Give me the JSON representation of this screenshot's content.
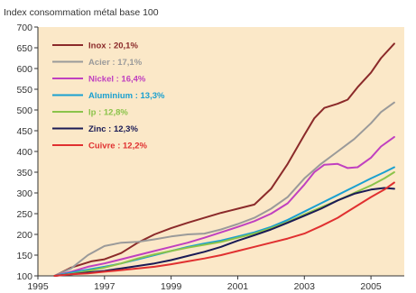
{
  "chart_data": {
    "type": "line",
    "title": "Index consommation métal base 100",
    "xlim": [
      1995,
      2006
    ],
    "ylim": [
      100,
      700
    ],
    "x_ticks": [
      1995,
      1997,
      1999,
      2001,
      2003,
      2005
    ],
    "y_ticks": [
      100,
      150,
      200,
      250,
      300,
      350,
      400,
      450,
      500,
      550,
      600,
      650,
      700
    ],
    "plot_background": "#fbe8c8",
    "grid": false,
    "legend_position": "top-left",
    "series": [
      {
        "name": "Inox : 20,1%",
        "color": "#8b2a2a",
        "points": [
          [
            1995.5,
            100
          ],
          [
            1996,
            120
          ],
          [
            1996.6,
            135
          ],
          [
            1997,
            140
          ],
          [
            1997.5,
            155
          ],
          [
            1998,
            180
          ],
          [
            1998.5,
            200
          ],
          [
            1999,
            215
          ],
          [
            1999.5,
            228
          ],
          [
            2000,
            240
          ],
          [
            2000.5,
            252
          ],
          [
            2001,
            262
          ],
          [
            2001.5,
            272
          ],
          [
            2002,
            310
          ],
          [
            2002.5,
            370
          ],
          [
            2003,
            440
          ],
          [
            2003.3,
            480
          ],
          [
            2003.6,
            505
          ],
          [
            2004,
            515
          ],
          [
            2004.3,
            525
          ],
          [
            2004.6,
            555
          ],
          [
            2005,
            590
          ],
          [
            2005.3,
            625
          ],
          [
            2005.7,
            660
          ]
        ]
      },
      {
        "name": "Acier : 17,1%",
        "color": "#9a9a9a",
        "points": [
          [
            1995.5,
            100
          ],
          [
            1996,
            118
          ],
          [
            1996.5,
            150
          ],
          [
            1997,
            172
          ],
          [
            1997.5,
            180
          ],
          [
            1998,
            182
          ],
          [
            1998.5,
            188
          ],
          [
            1999,
            195
          ],
          [
            1999.5,
            200
          ],
          [
            2000,
            202
          ],
          [
            2000.5,
            212
          ],
          [
            2001,
            225
          ],
          [
            2001.5,
            240
          ],
          [
            2002,
            262
          ],
          [
            2002.5,
            290
          ],
          [
            2003,
            335
          ],
          [
            2003.5,
            370
          ],
          [
            2004,
            400
          ],
          [
            2004.5,
            430
          ],
          [
            2005,
            468
          ],
          [
            2005.3,
            495
          ],
          [
            2005.7,
            518
          ]
        ]
      },
      {
        "name": "Nickel : 16,4%",
        "color": "#c040c0",
        "points": [
          [
            1995.5,
            100
          ],
          [
            1996,
            110
          ],
          [
            1996.5,
            122
          ],
          [
            1997,
            130
          ],
          [
            1997.5,
            140
          ],
          [
            1998,
            150
          ],
          [
            1998.5,
            160
          ],
          [
            1999,
            170
          ],
          [
            1999.5,
            180
          ],
          [
            2000,
            192
          ],
          [
            2000.5,
            205
          ],
          [
            2001,
            218
          ],
          [
            2001.5,
            232
          ],
          [
            2002,
            250
          ],
          [
            2002.5,
            275
          ],
          [
            2003,
            320
          ],
          [
            2003.3,
            350
          ],
          [
            2003.6,
            368
          ],
          [
            2004,
            370
          ],
          [
            2004.3,
            360
          ],
          [
            2004.6,
            362
          ],
          [
            2005,
            385
          ],
          [
            2005.3,
            412
          ],
          [
            2005.7,
            435
          ]
        ]
      },
      {
        "name": "Aluminium : 13,3%",
        "color": "#1aa0d0",
        "points": [
          [
            1995.5,
            100
          ],
          [
            1996,
            108
          ],
          [
            1996.5,
            115
          ],
          [
            1997,
            122
          ],
          [
            1997.5,
            130
          ],
          [
            1998,
            140
          ],
          [
            1998.5,
            150
          ],
          [
            1999,
            160
          ],
          [
            1999.5,
            170
          ],
          [
            2000,
            178
          ],
          [
            2000.5,
            185
          ],
          [
            2001,
            195
          ],
          [
            2001.5,
            205
          ],
          [
            2002,
            218
          ],
          [
            2002.5,
            235
          ],
          [
            2003,
            255
          ],
          [
            2003.5,
            275
          ],
          [
            2004,
            295
          ],
          [
            2004.5,
            315
          ],
          [
            2005,
            335
          ],
          [
            2005.4,
            350
          ],
          [
            2005.7,
            362
          ]
        ]
      },
      {
        "name": "Ip : 12,8%",
        "color": "#8bc34a",
        "points": [
          [
            1995.5,
            100
          ],
          [
            1996,
            105
          ],
          [
            1996.5,
            112
          ],
          [
            1997,
            120
          ],
          [
            1997.5,
            130
          ],
          [
            1998,
            142
          ],
          [
            1998.5,
            152
          ],
          [
            1999,
            160
          ],
          [
            1999.5,
            168
          ],
          [
            2000,
            175
          ],
          [
            2000.5,
            182
          ],
          [
            2001,
            192
          ],
          [
            2001.5,
            202
          ],
          [
            2002,
            215
          ],
          [
            2002.5,
            230
          ],
          [
            2003,
            248
          ],
          [
            2003.5,
            265
          ],
          [
            2004,
            282
          ],
          [
            2004.5,
            300
          ],
          [
            2005,
            318
          ],
          [
            2005.4,
            335
          ],
          [
            2005.7,
            350
          ]
        ]
      },
      {
        "name": "Zinc : 12,3%",
        "color": "#1a1a55",
        "points": [
          [
            1995.5,
            100
          ],
          [
            1996,
            104
          ],
          [
            1996.5,
            108
          ],
          [
            1997,
            112
          ],
          [
            1997.5,
            118
          ],
          [
            1998,
            124
          ],
          [
            1998.5,
            130
          ],
          [
            1999,
            138
          ],
          [
            1999.5,
            148
          ],
          [
            2000,
            158
          ],
          [
            2000.5,
            170
          ],
          [
            2001,
            185
          ],
          [
            2001.5,
            198
          ],
          [
            2002,
            212
          ],
          [
            2002.5,
            228
          ],
          [
            2003,
            245
          ],
          [
            2003.5,
            262
          ],
          [
            2004,
            282
          ],
          [
            2004.5,
            298
          ],
          [
            2005,
            308
          ],
          [
            2005.4,
            312
          ],
          [
            2005.7,
            310
          ]
        ]
      },
      {
        "name": "Cuivre : 12,2%",
        "color": "#e03030",
        "points": [
          [
            1995.5,
            100
          ],
          [
            1996,
            104
          ],
          [
            1996.5,
            106
          ],
          [
            1997,
            110
          ],
          [
            1997.5,
            114
          ],
          [
            1998,
            118
          ],
          [
            1998.5,
            122
          ],
          [
            1999,
            128
          ],
          [
            1999.5,
            135
          ],
          [
            2000,
            142
          ],
          [
            2000.5,
            150
          ],
          [
            2001,
            160
          ],
          [
            2001.5,
            170
          ],
          [
            2002,
            180
          ],
          [
            2002.5,
            190
          ],
          [
            2003,
            202
          ],
          [
            2003.5,
            220
          ],
          [
            2004,
            240
          ],
          [
            2004.5,
            265
          ],
          [
            2005,
            290
          ],
          [
            2005.4,
            308
          ],
          [
            2005.7,
            325
          ]
        ]
      }
    ]
  }
}
